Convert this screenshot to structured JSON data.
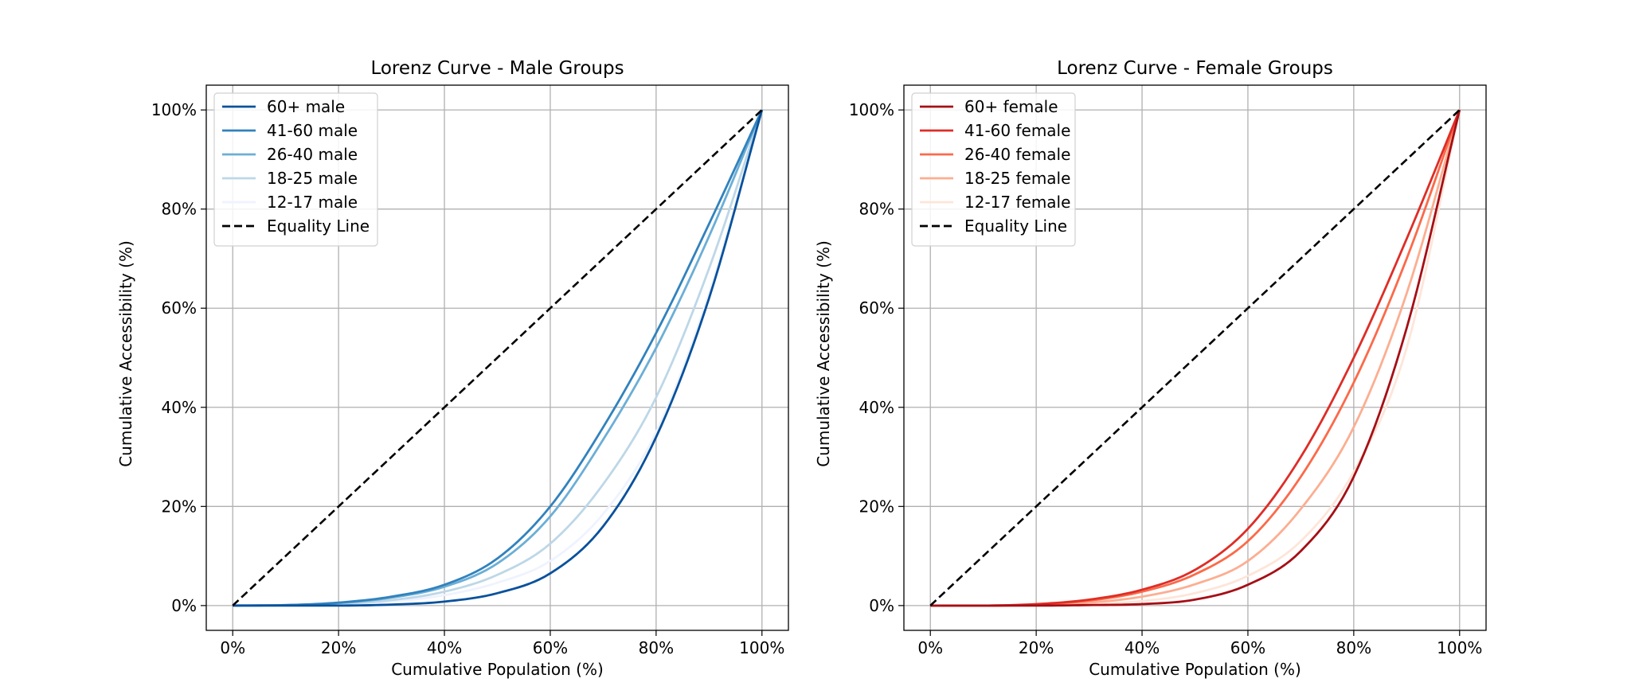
{
  "chart_data": [
    {
      "type": "line",
      "title": "Lorenz Curve - Male Groups",
      "xlabel": "Cumulative Population (%)",
      "ylabel": "Cumulative Accessibility (%)",
      "xlim": [
        -5,
        105
      ],
      "ylim": [
        -5,
        105
      ],
      "xticks": [
        "0%",
        "20%",
        "40%",
        "60%",
        "80%",
        "100%"
      ],
      "yticks": [
        "0%",
        "20%",
        "40%",
        "60%",
        "80%",
        "100%"
      ],
      "grid": true,
      "legend_position": "upper-left",
      "x": [
        0,
        10,
        20,
        30,
        40,
        50,
        60,
        70,
        80,
        90,
        100
      ],
      "series": [
        {
          "name": "60+ male",
          "color": "#08519c",
          "values": [
            0,
            0,
            0,
            0.2,
            0.8,
            2.5,
            6.5,
            16,
            34,
            62,
            100
          ]
        },
        {
          "name": "41-60 male",
          "color": "#3182bd",
          "values": [
            0,
            0.1,
            0.6,
            1.8,
            4.2,
            9.5,
            20,
            36,
            55,
            77,
            100
          ]
        },
        {
          "name": "26-40 male",
          "color": "#6baed6",
          "values": [
            0,
            0.1,
            0.5,
            1.6,
            3.8,
            8.5,
            18,
            33.5,
            52,
            74.5,
            100
          ]
        },
        {
          "name": "18-25 male",
          "color": "#bdd7e7",
          "values": [
            0,
            0.05,
            0.3,
            1.1,
            2.8,
            6.2,
            12.5,
            24.5,
            42,
            68,
            100
          ]
        },
        {
          "name": "12-17 male",
          "color": "#eff3ff",
          "values": [
            0,
            0.05,
            0.2,
            0.8,
            2.1,
            4.6,
            9,
            18.5,
            35,
            63,
            100
          ]
        },
        {
          "name": "Equality Line",
          "color": "#000000",
          "dashed": true,
          "values": [
            0,
            10,
            20,
            30,
            40,
            50,
            60,
            70,
            80,
            90,
            100
          ]
        }
      ]
    },
    {
      "type": "line",
      "title": "Lorenz Curve - Female Groups",
      "xlabel": "Cumulative Population (%)",
      "ylabel": "Cumulative Accessibility (%)",
      "xlim": [
        -5,
        105
      ],
      "ylim": [
        -5,
        105
      ],
      "xticks": [
        "0%",
        "20%",
        "40%",
        "60%",
        "80%",
        "100%"
      ],
      "yticks": [
        "0%",
        "20%",
        "40%",
        "60%",
        "80%",
        "100%"
      ],
      "grid": true,
      "legend_position": "upper-left",
      "x": [
        0,
        10,
        20,
        30,
        40,
        50,
        60,
        70,
        80,
        90,
        100
      ],
      "series": [
        {
          "name": "60+ female",
          "color": "#a50f15",
          "values": [
            0,
            0,
            0,
            0.1,
            0.3,
            1.2,
            4.2,
            11,
            26,
            56,
            100
          ]
        },
        {
          "name": "41-60 female",
          "color": "#de2d26",
          "values": [
            0,
            0,
            0.3,
            1.2,
            3.2,
            7.2,
            15.5,
            30,
            50,
            74,
            100
          ]
        },
        {
          "name": "26-40 female",
          "color": "#fb6a4a",
          "values": [
            0,
            0,
            0.2,
            1,
            2.8,
            6.3,
            13,
            26,
            45,
            70,
            100
          ]
        },
        {
          "name": "18-25 female",
          "color": "#fcae91",
          "values": [
            0,
            0,
            0.1,
            0.6,
            1.8,
            4.3,
            9,
            19.5,
            36,
            63,
            100
          ]
        },
        {
          "name": "12-17 female",
          "color": "#fee5d9",
          "values": [
            0,
            0,
            0.05,
            0.3,
            0.9,
            2.5,
            6,
            13,
            27,
            52,
            100
          ]
        },
        {
          "name": "Equality Line",
          "color": "#000000",
          "dashed": true,
          "values": [
            0,
            10,
            20,
            30,
            40,
            50,
            60,
            70,
            80,
            90,
            100
          ]
        }
      ]
    }
  ]
}
